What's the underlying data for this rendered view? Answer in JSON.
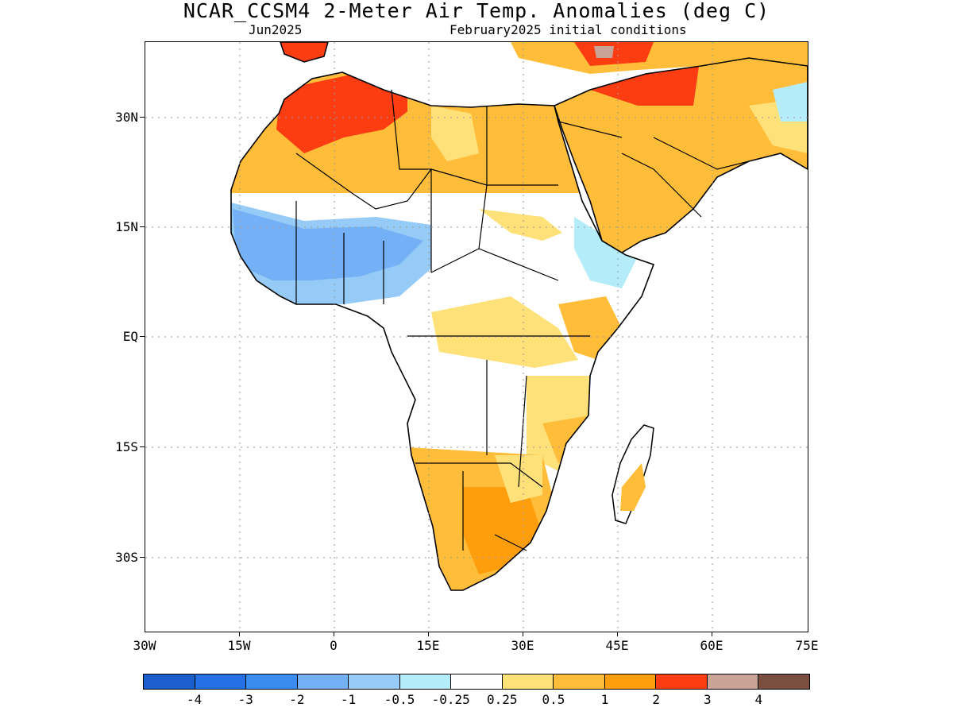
{
  "title": "NCAR_CCSM4 2-Meter Air Temp. Anomalies (deg C)",
  "subtitle_left": "Jun2025",
  "subtitle_right": "February2025 initial conditions",
  "lat_labels": [
    "30N",
    "15N",
    "EQ",
    "15S",
    "30S"
  ],
  "lon_labels": [
    "30W",
    "15W",
    "0",
    "15E",
    "30E",
    "45E",
    "60E",
    "75E"
  ],
  "colorbar": {
    "colors": [
      "#1a5fcc",
      "#2670e6",
      "#3a8cf0",
      "#73b0f5",
      "#96cbf7",
      "#b4ecf9",
      "#ffffff",
      "#ffe17a",
      "#ffbd3a",
      "#ff9e0c",
      "#fc3d12",
      "#c9a396",
      "#7a4f40"
    ],
    "labels": [
      "-4",
      "-3",
      "-2",
      "-1",
      "-0.5",
      "-0.25",
      "0.25",
      "0.5",
      "1",
      "2",
      "3",
      "4"
    ]
  },
  "map": {
    "lon_range": [
      -30,
      75
    ],
    "lat_range": [
      -40,
      40
    ],
    "grid": true,
    "region": "Africa and Arabian Peninsula"
  }
}
